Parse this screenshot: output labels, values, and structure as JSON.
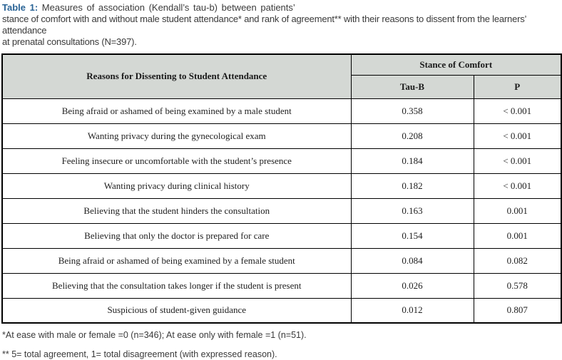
{
  "caption": {
    "label": "Table 1:",
    "line1_rest": " Measures of association (Kendall’s tau-b) between patients’",
    "line2": "stance of comfort with and without male student attendance* and rank of agreement** with their reasons to dissent from the learners’ attendance",
    "line3": "at prenatal consultations (N=397)."
  },
  "table": {
    "reason_header": "Reasons for Dissenting to Student Attendance",
    "group_header": "Stance of Comfort",
    "sub_headers": [
      "Tau-B",
      "P"
    ],
    "rows": [
      {
        "reason": "Being afraid or ashamed of being examined by a male student",
        "tau_b": "0.358",
        "p": "< 0.001"
      },
      {
        "reason": "Wanting privacy during the gynecological exam",
        "tau_b": "0.208",
        "p": "< 0.001"
      },
      {
        "reason": "Feeling insecure or uncomfortable with the student’s presence",
        "tau_b": "0.184",
        "p": "< 0.001"
      },
      {
        "reason": "Wanting privacy during clinical history",
        "tau_b": "0.182",
        "p": "< 0.001"
      },
      {
        "reason": "Believing that the student hinders the consultation",
        "tau_b": "0.163",
        "p": "0.001"
      },
      {
        "reason": "Believing that only the doctor is prepared for care",
        "tau_b": "0.154",
        "p": "0.001"
      },
      {
        "reason": "Being afraid or ashamed of being examined by a female student",
        "tau_b": "0.084",
        "p": "0.082"
      },
      {
        "reason": "Believing that the consultation takes longer if the student is present",
        "tau_b": "0.026",
        "p": "0.578"
      },
      {
        "reason": "Suspicious of student-given guidance",
        "tau_b": "0.012",
        "p": "0.807"
      }
    ]
  },
  "footnotes": {
    "note1": "*At ease with male or female =0 (n=346); At ease only with female =1 (n=51).",
    "note2": "** 5= total agreement, 1= total disagreement (with expressed reason)."
  },
  "colors": {
    "header_bg": "#d4d8d4",
    "caption_accent": "#2a6496",
    "border": "#000000"
  }
}
